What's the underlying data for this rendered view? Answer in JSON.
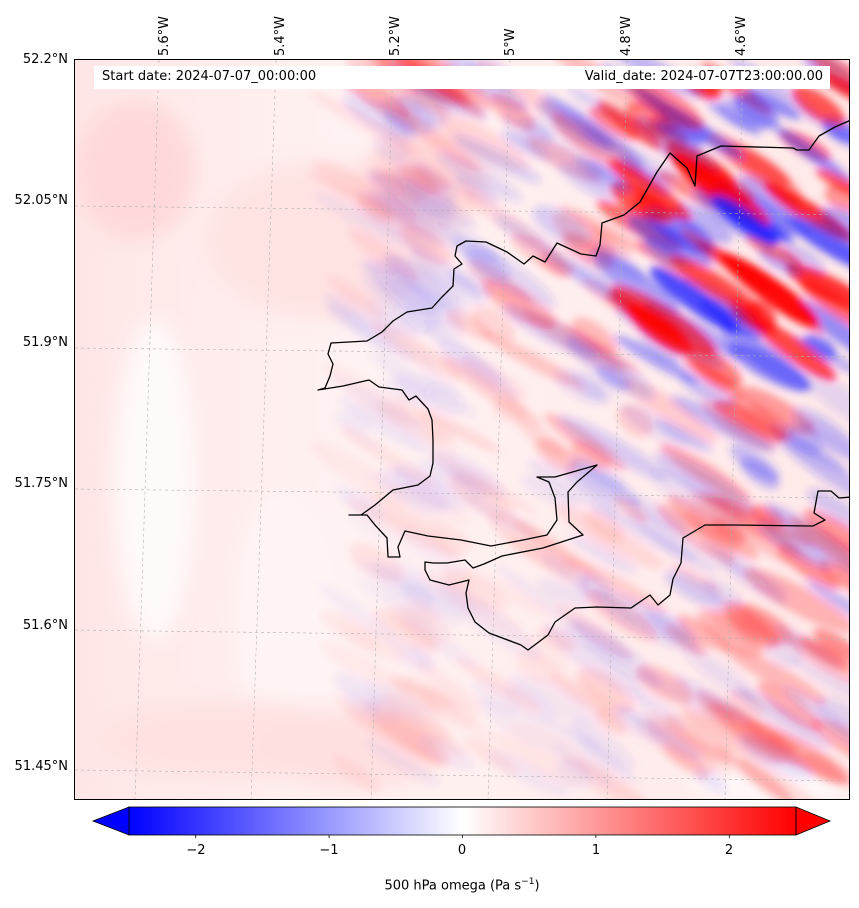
{
  "map": {
    "start_date": "Start date: 2024-07-07_00:00:00",
    "valid_date": "Valid_date: 2024-07-07T23:00:00.00",
    "longitude_labels": [
      "5.6°W",
      "5.4°W",
      "5.2°W",
      "5°W",
      "4.8°W",
      "4.6°W"
    ],
    "latitude_labels": [
      "52.2°N",
      "52.05°N",
      "51.9°N",
      "51.75°N",
      "51.6°N",
      "51.45°N"
    ],
    "variable": "500 hPa omega",
    "colors": {
      "negative": "#0000ff",
      "neutral": "#ffffff",
      "positive": "#ff0000",
      "coastline": "#000000",
      "gridline": "#b0b0b0"
    }
  },
  "colorbar": {
    "ticks": [
      "−2",
      "−1",
      "0",
      "1",
      "2"
    ],
    "tick_values": [
      -2,
      -1,
      0,
      1,
      2
    ],
    "range": [
      -2.5,
      2.5
    ],
    "label_prefix": "500 hPa omega (Pa s",
    "label_exp": "−1",
    "label_suffix": ")"
  }
}
